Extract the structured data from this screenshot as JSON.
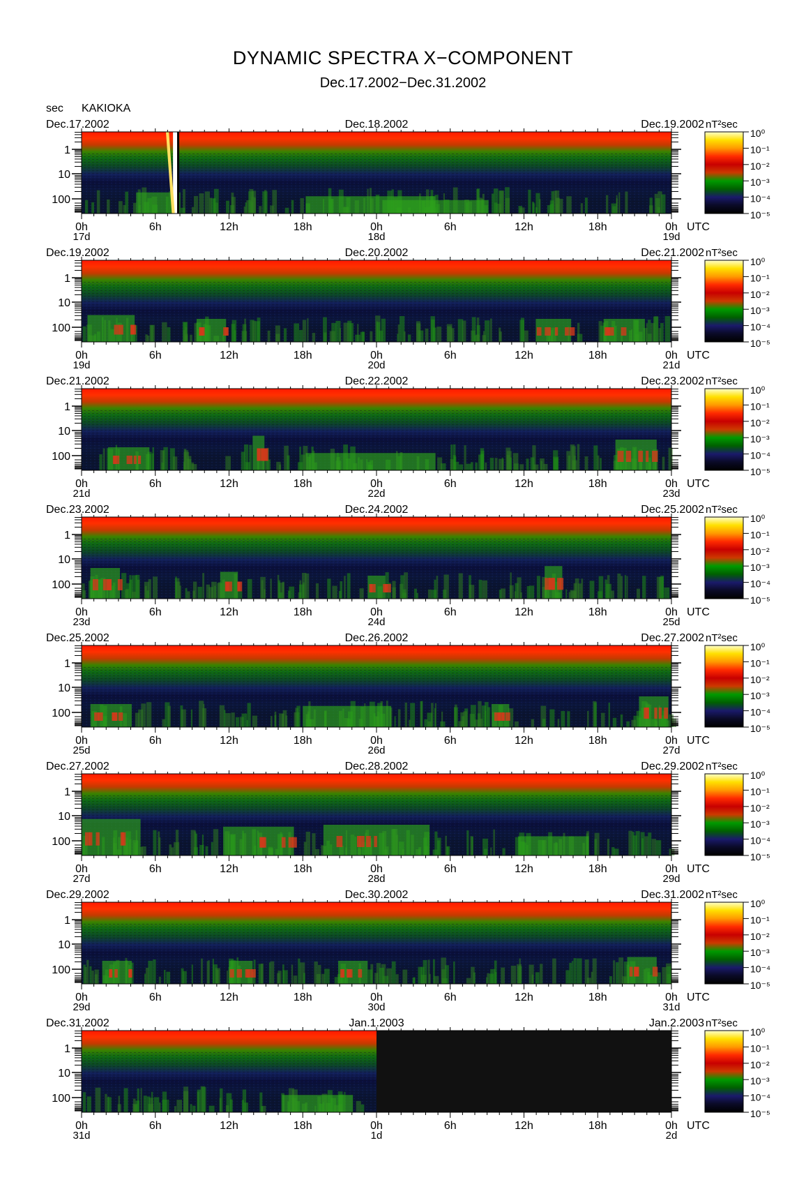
{
  "header": {
    "title": "DYNAMIC SPECTRA X−COMPONENT",
    "subtitle": "Dec.17.2002−Dec.31.2002",
    "y_unit": "sec",
    "station": "KAKIOKA"
  },
  "chart_data": {
    "type": "heatmap",
    "title": "DYNAMIC SPECTRA X−COMPONENT",
    "subtitle": "Dec.17.2002−Dec.31.2002",
    "ylabel": "sec",
    "y_scale": "log",
    "y_ticks": [
      "1",
      "10",
      "100"
    ],
    "x_hour_ticks": [
      "0h",
      "6h",
      "12h",
      "18h",
      "0h",
      "6h",
      "12h",
      "18h",
      "0h"
    ],
    "x_unit": "UTC",
    "colorbar": {
      "unit": "nT²sec",
      "scale": "log",
      "ticks": [
        "10⁰",
        "10⁻¹",
        "10⁻²",
        "10⁻³",
        "10⁻⁴",
        "10⁻⁵"
      ],
      "colors": [
        "#ffffcc",
        "#ffe000",
        "#ff9a00",
        "#ff2a00",
        "#c80000",
        "#cc3a00",
        "#009a00",
        "#006000",
        "#1a1a6a",
        "#0a0a26",
        "#000000"
      ]
    },
    "panels": [
      {
        "date_left": "Dec.17.2002",
        "date_mid": "Dec.18.2002",
        "date_right": "Dec.19.2002",
        "days": [
          "17d",
          "18d",
          "19d"
        ],
        "data_end": 1.0,
        "events": [
          [
            0.13,
            0.075,
            0.55
          ],
          [
            0.49,
            0.22,
            0.45
          ],
          [
            0.6,
            0.18,
            0.35
          ]
        ]
      },
      {
        "date_left": "Dec.19.2002",
        "date_mid": "Dec.20.2002",
        "date_right": "Dec.21.2002",
        "days": [
          "19d",
          "20d",
          "21d"
        ],
        "data_end": 1.0,
        "events": [
          [
            0.05,
            0.08,
            0.7
          ],
          [
            0.22,
            0.05,
            0.6
          ],
          [
            0.8,
            0.06,
            0.6
          ],
          [
            0.92,
            0.07,
            0.6
          ]
        ]
      },
      {
        "date_left": "Dec.21.2002",
        "date_mid": "Dec.22.2002",
        "date_right": "Dec.23.2002",
        "days": [
          "21d",
          "22d",
          "23d"
        ],
        "data_end": 1.0,
        "events": [
          [
            0.08,
            0.07,
            0.6
          ],
          [
            0.3,
            0.02,
            0.9
          ],
          [
            0.49,
            0.22,
            0.45
          ],
          [
            0.94,
            0.07,
            0.8
          ]
        ]
      },
      {
        "date_left": "Dec.23.2002",
        "date_mid": "Dec.24.2002",
        "date_right": "Dec.25.2002",
        "days": [
          "23d",
          "24d",
          "25d"
        ],
        "data_end": 1.0,
        "events": [
          [
            0.04,
            0.05,
            0.8
          ],
          [
            0.25,
            0.03,
            0.7
          ],
          [
            0.5,
            0.03,
            0.6
          ],
          [
            0.8,
            0.03,
            0.85
          ]
        ]
      },
      {
        "date_left": "Dec.25.2002",
        "date_mid": "Dec.26.2002",
        "date_right": "Dec.27.2002",
        "days": [
          "25d",
          "26d",
          "27d"
        ],
        "data_end": 1.0,
        "events": [
          [
            0.05,
            0.07,
            0.6
          ],
          [
            0.45,
            0.15,
            0.55
          ],
          [
            0.71,
            0.03,
            0.6
          ],
          [
            0.97,
            0.05,
            0.8
          ]
        ]
      },
      {
        "date_left": "Dec.27.2002",
        "date_mid": "Dec.28.2002",
        "date_right": "Dec.29.2002",
        "days": [
          "27d",
          "28d",
          "29d"
        ],
        "data_end": 1.0,
        "events": [
          [
            0.05,
            0.1,
            0.95
          ],
          [
            0.3,
            0.12,
            0.75
          ],
          [
            0.5,
            0.18,
            0.8
          ],
          [
            0.8,
            0.12,
            0.5
          ]
        ]
      },
      {
        "date_left": "Dec.29.2002",
        "date_mid": "Dec.30.2002",
        "date_right": "Dec.31.2002",
        "days": [
          "29d",
          "30d",
          "31d"
        ],
        "data_end": 1.0,
        "events": [
          [
            0.06,
            0.05,
            0.6
          ],
          [
            0.27,
            0.04,
            0.6
          ],
          [
            0.46,
            0.05,
            0.6
          ],
          [
            0.95,
            0.05,
            0.7
          ]
        ]
      },
      {
        "date_left": "Dec.31.2002",
        "date_mid": "Jan.1.2003",
        "date_right": "Jan.2.2003",
        "days": [
          "31d",
          "1d",
          "2d"
        ],
        "data_end": 0.5,
        "events": [
          [
            0.4,
            0.12,
            0.45
          ]
        ]
      }
    ]
  }
}
